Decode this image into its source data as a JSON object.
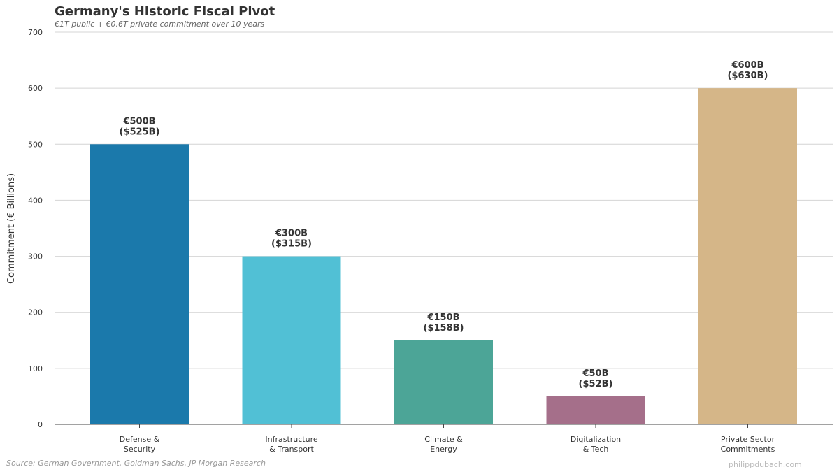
{
  "chart_data": {
    "type": "bar",
    "title": "Germany's Historic Fiscal Pivot",
    "subtitle": "€1T public + €0.6T private commitment over 10 years",
    "ylabel": "Commitment (€ Billions)",
    "xlabel": "",
    "ylim": [
      0,
      700
    ],
    "yticks": [
      0,
      100,
      200,
      300,
      400,
      500,
      600,
      700
    ],
    "grid": true,
    "categories": [
      [
        "Defense &",
        "Security"
      ],
      [
        "Infrastructure",
        "& Transport"
      ],
      [
        "Climate &",
        "Energy"
      ],
      [
        "Digitalization",
        "& Tech"
      ],
      [
        "Private Sector",
        "Commitments"
      ]
    ],
    "values": [
      500,
      300,
      150,
      50,
      600
    ],
    "data_labels": [
      [
        "€500B",
        "($525B)"
      ],
      [
        "€300B",
        "($315B)"
      ],
      [
        "€150B",
        "($158B)"
      ],
      [
        "€50B",
        "($52B)"
      ],
      [
        "€600B",
        "($630B)"
      ]
    ],
    "colors": [
      "#1b79ab",
      "#51c0d5",
      "#4ca597",
      "#a56f8a",
      "#d5b688"
    ]
  },
  "footer": {
    "source": "Source: German Government, Goldman Sachs, JP Morgan Research",
    "watermark": "philippdubach.com"
  }
}
